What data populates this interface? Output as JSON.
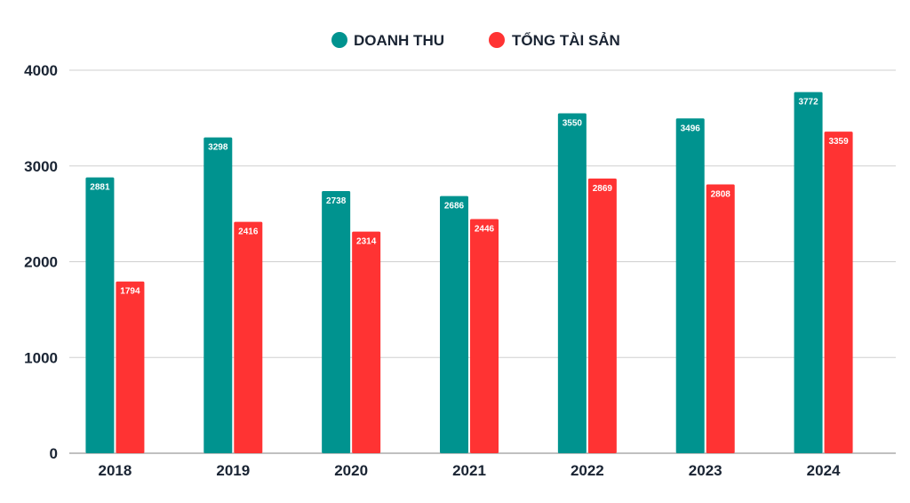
{
  "chart_data": {
    "type": "bar",
    "title": "",
    "xlabel": "",
    "ylabel": "",
    "categories": [
      "2018",
      "2019",
      "2020",
      "2021",
      "2022",
      "2023",
      "2024"
    ],
    "series": [
      {
        "name": "DOANH THU",
        "color": "#00938f",
        "values": [
          2881,
          3298,
          2738,
          2686,
          3550,
          3496,
          3772
        ]
      },
      {
        "name": "TỔNG TÀI SẢN",
        "color": "#ff3333",
        "values": [
          1794,
          2416,
          2314,
          2446,
          2869,
          2808,
          3359
        ]
      }
    ],
    "ylim": [
      0,
      4000
    ],
    "yticks": [
      0,
      1000,
      2000,
      3000,
      4000
    ],
    "grid": true,
    "legend_position": "top-center",
    "data_labels": true
  }
}
